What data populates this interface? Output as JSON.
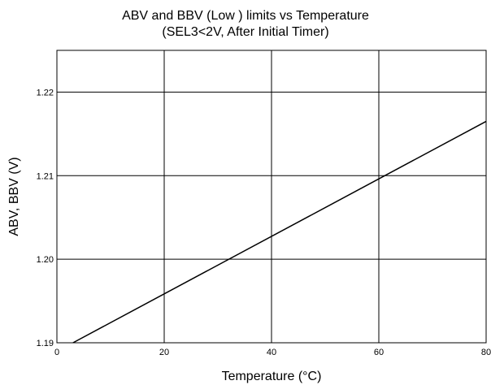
{
  "chart_data": {
    "type": "line",
    "title": "ABV and BBV (Low ) limits vs Temperature",
    "subtitle": "(SEL3<2V, After Initial Timer)",
    "xlabel": "Temperature (°C)",
    "ylabel": "ABV, BBV (V)",
    "xlim": [
      0,
      80
    ],
    "ylim": [
      1.19,
      1.225
    ],
    "grid": true,
    "x_ticks": [
      {
        "value": 0,
        "label": "0"
      },
      {
        "value": 20,
        "label": "20"
      },
      {
        "value": 40,
        "label": "40"
      },
      {
        "value": 60,
        "label": "60"
      },
      {
        "value": 80,
        "label": "80"
      }
    ],
    "y_ticks": [
      {
        "value": 1.19,
        "label": "1.19"
      },
      {
        "value": 1.2,
        "label": "1.20"
      },
      {
        "value": 1.21,
        "label": "1.21"
      },
      {
        "value": 1.22,
        "label": "1.22"
      }
    ],
    "series": [
      {
        "x": [
          3,
          80
        ],
        "y": [
          1.19,
          1.2165
        ]
      }
    ]
  }
}
